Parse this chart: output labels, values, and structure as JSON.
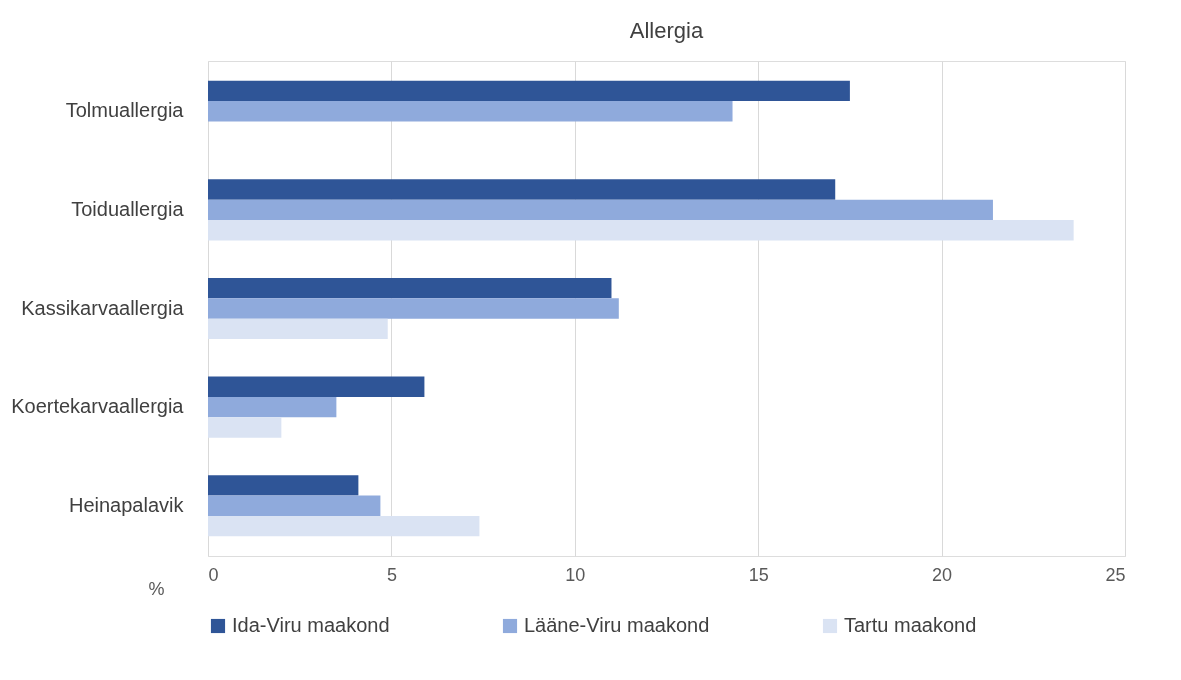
{
  "chart_data": {
    "type": "bar",
    "orientation": "horizontal",
    "title": "Allergia",
    "xlabel": "%",
    "categories": [
      "Tolmuallergia",
      "Toiduallergia",
      "Kassikarvaallergia",
      "Koertekarvaallergia",
      "Heinapalavik"
    ],
    "series": [
      {
        "name": "Ida-Viru maakond",
        "color": "#2f5597",
        "values": [
          17.5,
          17.1,
          11.0,
          5.9,
          4.1
        ]
      },
      {
        "name": "Lääne-Viru maakond",
        "color": "#8faadc",
        "values": [
          14.3,
          21.4,
          11.2,
          3.5,
          4.7
        ]
      },
      {
        "name": "Tartu maakond",
        "color": "#dae3f3",
        "values": [
          null,
          23.6,
          4.9,
          2.0,
          7.4
        ]
      }
    ],
    "xlim": [
      0,
      25
    ],
    "xticks": [
      0,
      5,
      10,
      15,
      20,
      25
    ],
    "grid": "x",
    "legend": "bottom"
  }
}
